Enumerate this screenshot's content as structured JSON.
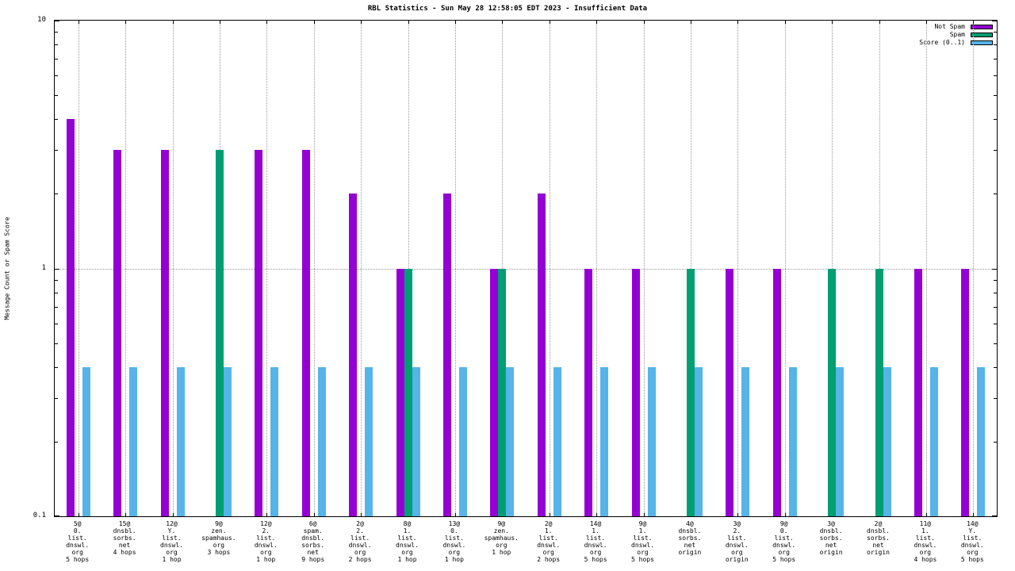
{
  "title": "RBL Statistics - Sun May 28 12:58:05 EDT 2023 - Insufficient Data",
  "y_axis": {
    "label": "Message Count or Spam Score",
    "scale": "log",
    "ticks": [
      {
        "label": "10",
        "value": 10
      },
      {
        "label": "1",
        "value": 1
      },
      {
        "label": "0.1",
        "value": 0.1
      }
    ]
  },
  "legend": {
    "position": "top-right",
    "entries": [
      {
        "label": "Not Spam",
        "color": "#9400d3"
      },
      {
        "label": "Spam",
        "color": "#009e73"
      },
      {
        "label": "Score (0..1)",
        "color": "#56b4e9"
      }
    ]
  },
  "chart_data": {
    "type": "bar",
    "y_scale": "log",
    "ylim": [
      0.1,
      10
    ],
    "grid": {
      "vertical_per_category": true,
      "horizontal_values": [
        1
      ]
    },
    "categories": [
      [
        "5@",
        "0.",
        "list.",
        "dnswl.",
        "org",
        "5 hops"
      ],
      [
        "15@",
        "dnsbl.",
        "sorbs.",
        "net",
        "4 hops"
      ],
      [
        "12@",
        "Y.",
        "list.",
        "dnswl.",
        "org",
        "1 hop"
      ],
      [
        "9@",
        "zen.",
        "spamhaus.",
        "org",
        "3 hops"
      ],
      [
        "12@",
        "2.",
        "list.",
        "dnswl.",
        "org",
        "1 hop"
      ],
      [
        "6@",
        "spam.",
        "dnsbl.",
        "sorbs.",
        "net",
        "9 hops"
      ],
      [
        "2@",
        "2.",
        "list.",
        "dnswl.",
        "org",
        "2 hops"
      ],
      [
        "8@",
        "1.",
        "list.",
        "dnswl.",
        "org",
        "1 hop"
      ],
      [
        "13@",
        "0.",
        "list.",
        "dnswl.",
        "org",
        "1 hop"
      ],
      [
        "9@",
        "zen.",
        "spamhaus.",
        "org",
        "1 hop"
      ],
      [
        "2@",
        "1.",
        "list.",
        "dnswl.",
        "org",
        "2 hops"
      ],
      [
        "14@",
        "1.",
        "list.",
        "dnswl.",
        "org",
        "5 hops"
      ],
      [
        "9@",
        "1.",
        "list.",
        "dnswl.",
        "org",
        "5 hops"
      ],
      [
        "4@",
        "dnsbl.",
        "sorbs.",
        "net",
        "origin"
      ],
      [
        "3@",
        "2.",
        "list.",
        "dnswl.",
        "org",
        "origin"
      ],
      [
        "9@",
        "0.",
        "list.",
        "dnswl.",
        "org",
        "5 hops"
      ],
      [
        "3@",
        "dnsbl.",
        "sorbs.",
        "net",
        "origin"
      ],
      [
        "2@",
        "dnsbl.",
        "sorbs.",
        "net",
        "origin"
      ],
      [
        "11@",
        "1.",
        "list.",
        "dnswl.",
        "org",
        "4 hops"
      ],
      [
        "14@",
        "Y.",
        "list.",
        "dnswl.",
        "org",
        "5 hops"
      ]
    ],
    "series": [
      {
        "name": "Not Spam",
        "color": "#9400d3",
        "values": [
          4,
          3,
          3,
          0,
          3,
          3,
          2,
          1,
          2,
          1,
          2,
          1,
          1,
          0,
          1,
          1,
          0,
          0,
          1,
          1
        ]
      },
      {
        "name": "Spam",
        "color": "#009e73",
        "values": [
          0,
          0,
          0,
          3,
          0,
          0,
          0,
          1,
          0,
          1,
          0,
          0,
          0,
          1,
          0,
          0,
          1,
          1,
          0,
          0
        ]
      },
      {
        "name": "Score (0..1)",
        "color": "#56b4e9",
        "values": [
          0.4,
          0.4,
          0.4,
          0.4,
          0.4,
          0.4,
          0.4,
          0.4,
          0.4,
          0.4,
          0.4,
          0.4,
          0.4,
          0.4,
          0.4,
          0.4,
          0.4,
          0.4,
          0.4,
          0.4
        ]
      }
    ]
  }
}
